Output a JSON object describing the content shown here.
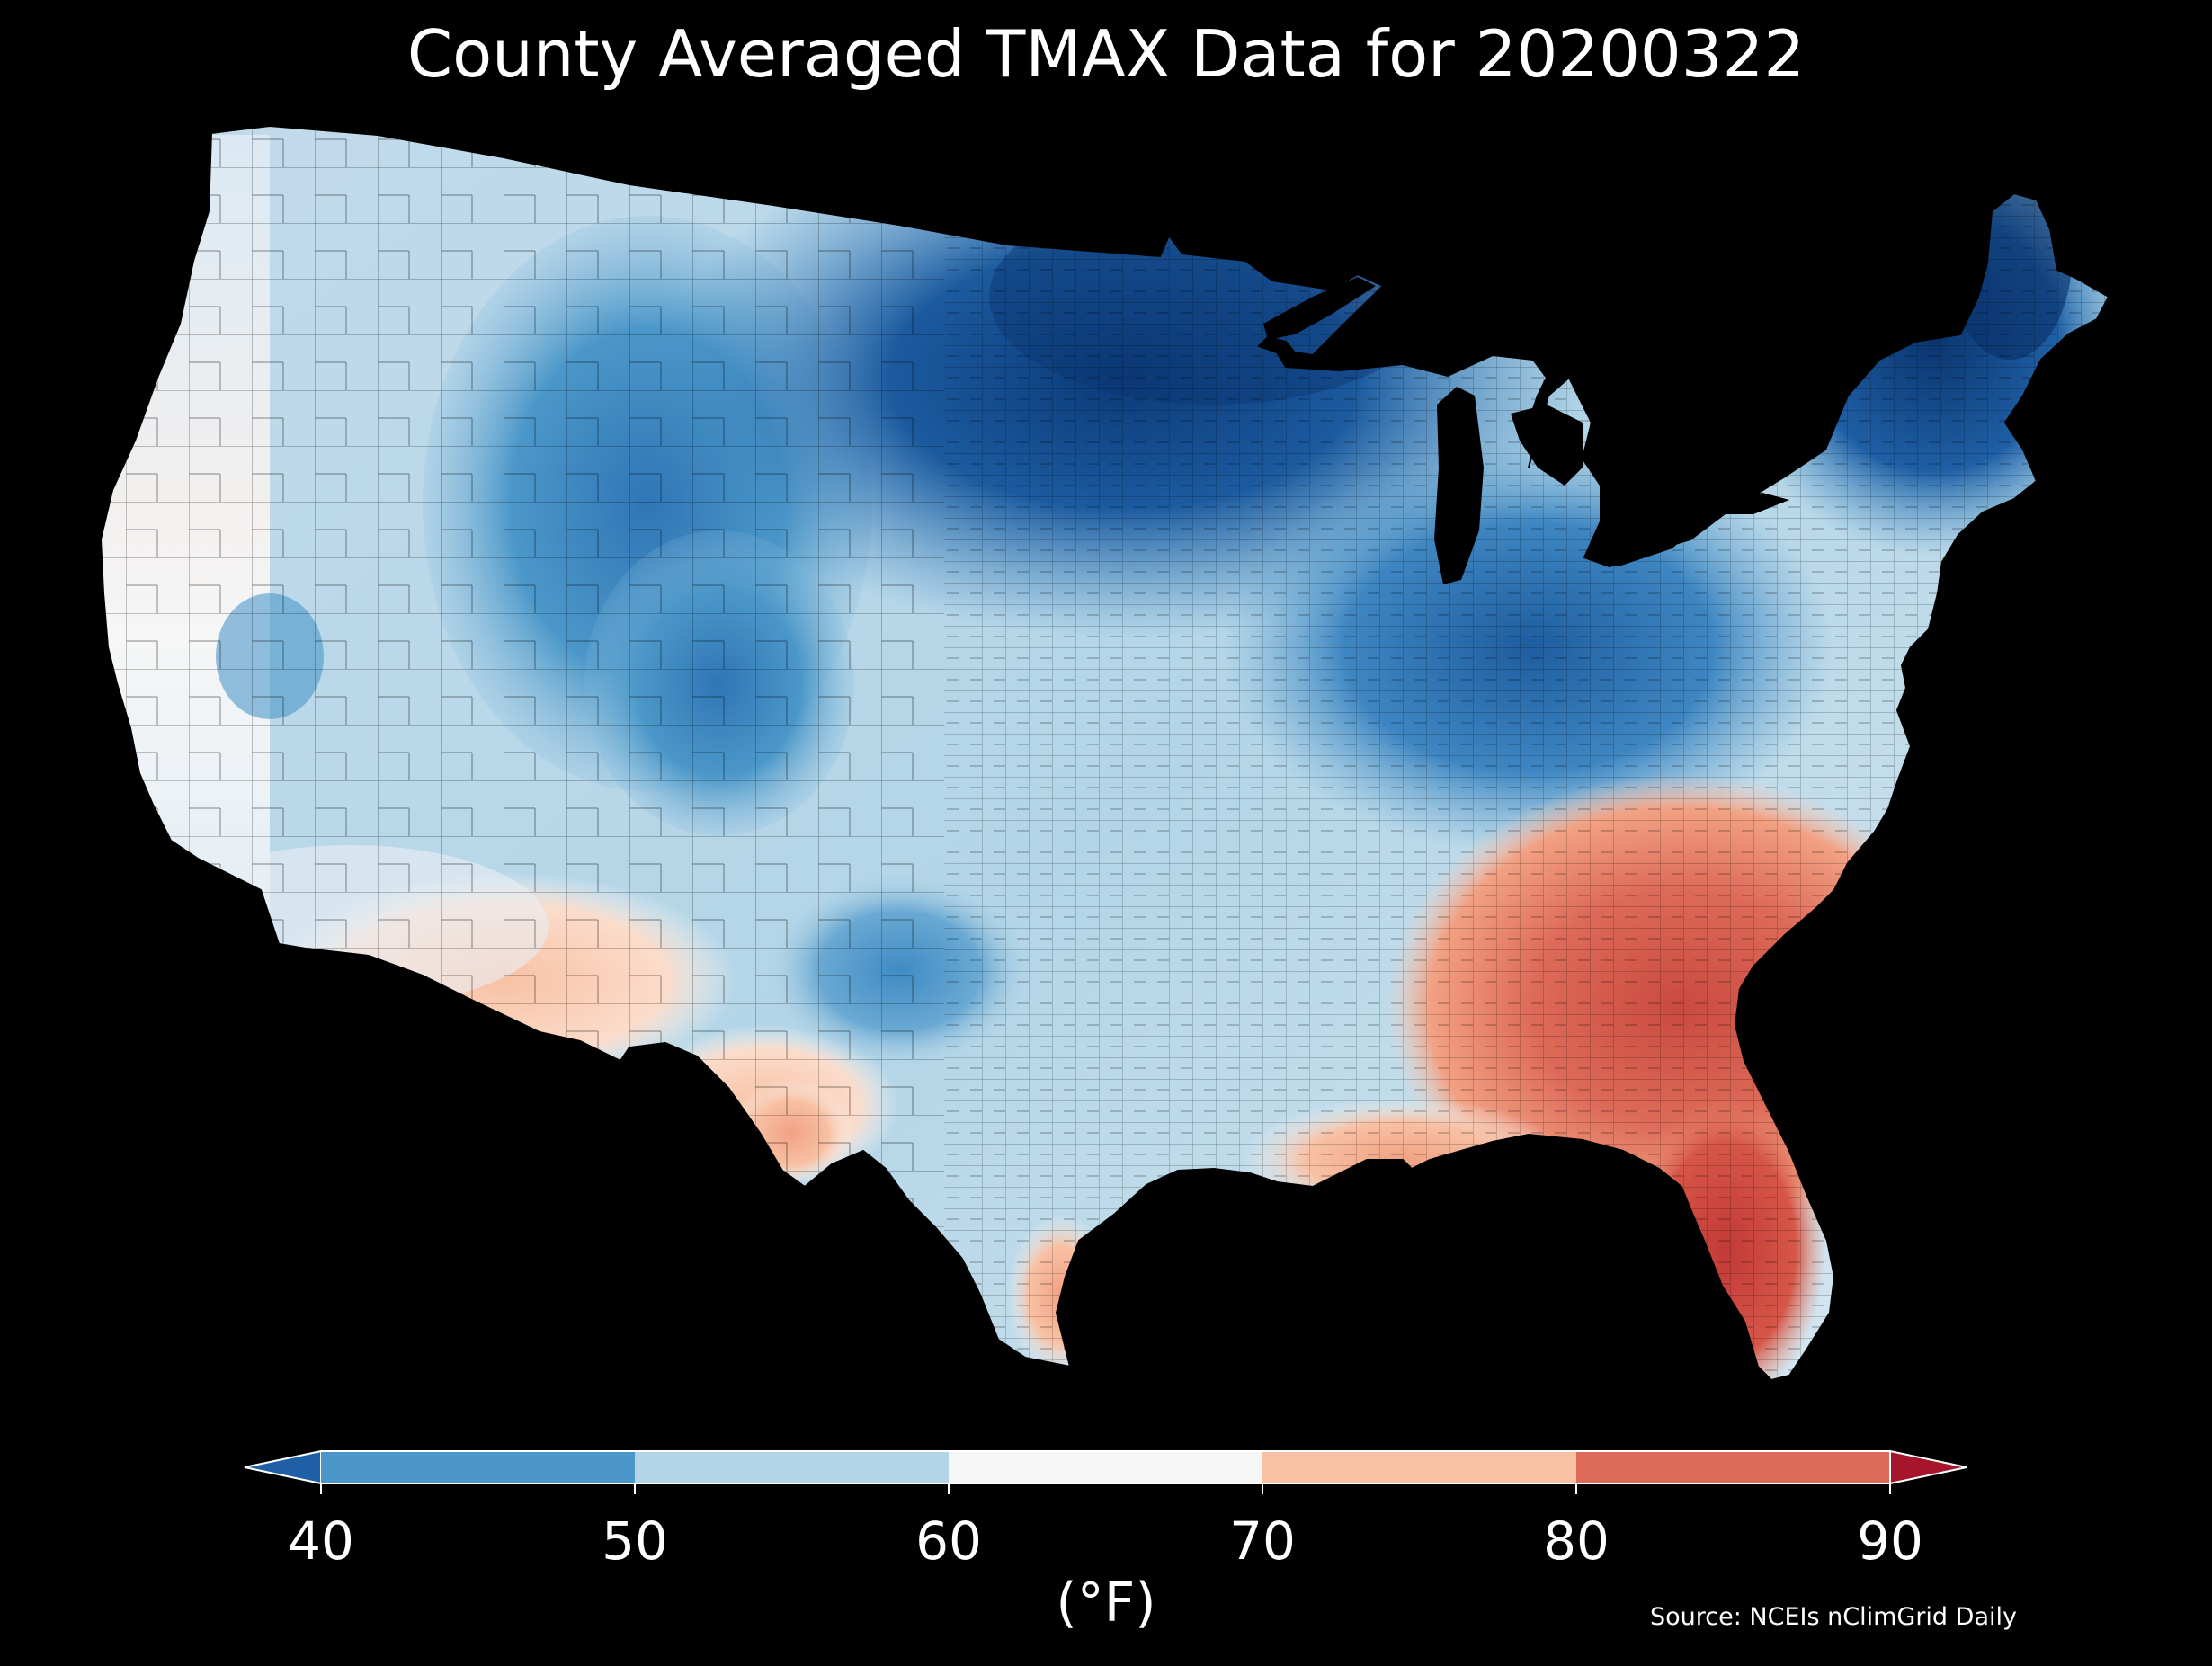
{
  "title": "County Averaged TMAX Data for 20200322",
  "colorbar": {
    "unit_label": "(°F)",
    "ticks": [
      "40",
      "50",
      "60",
      "70",
      "80",
      "90"
    ],
    "bins": [
      {
        "from": 40,
        "to": 50,
        "color": "#4b97c9"
      },
      {
        "from": 50,
        "to": 60,
        "color": "#b3d5e7"
      },
      {
        "from": 60,
        "to": 70,
        "color": "#f6f6f6"
      },
      {
        "from": 70,
        "to": 80,
        "color": "#f8c1a4"
      },
      {
        "from": 80,
        "to": 90,
        "color": "#dd6a58"
      }
    ],
    "under_color": "#1f5fa5",
    "over_color": "#a6152b",
    "vmin": 40,
    "vmax": 90
  },
  "source": "Source: NCEIs nClimGrid Daily",
  "map": {
    "region": "Contiguous United States",
    "variable": "TMAX",
    "date": "20200322",
    "background_color": "#000000",
    "palette": [
      "#08306b",
      "#1f5fa5",
      "#4b97c9",
      "#8fc1de",
      "#d5e6f1",
      "#f6f6f6",
      "#fbd3c0",
      "#f2a183",
      "#dd6a58",
      "#c23a36"
    ]
  }
}
